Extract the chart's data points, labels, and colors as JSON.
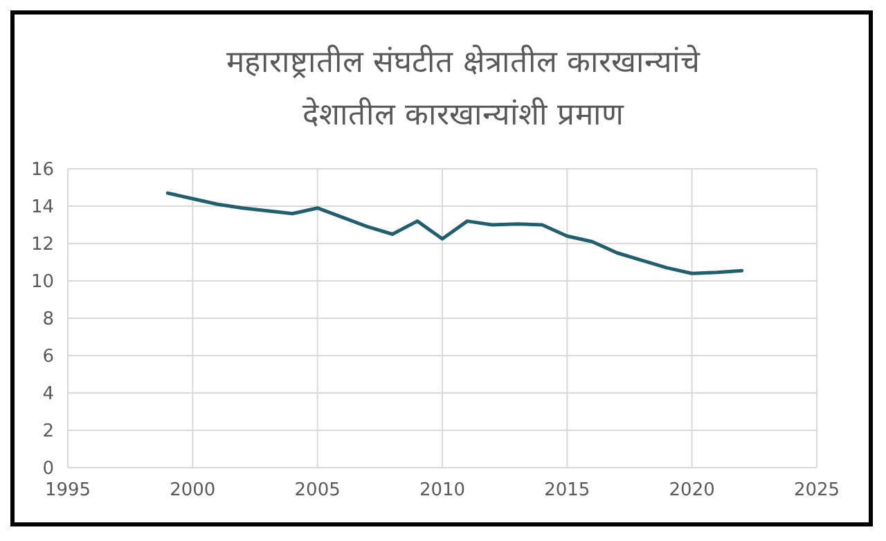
{
  "chart_data": {
    "type": "line",
    "title": "महाराष्ट्रातील संघटीत क्षेत्रातील कारखान्यांचे\nदेशातील कारखान्यांशी प्रमाण",
    "x": [
      1999,
      2000,
      2001,
      2002,
      2003,
      2004,
      2005,
      2006,
      2007,
      2008,
      2009,
      2010,
      2011,
      2012,
      2013,
      2014,
      2015,
      2016,
      2017,
      2018,
      2019,
      2020,
      2021,
      2022
    ],
    "series": [
      {
        "color": "#215f6e",
        "values": [
          14.7,
          14.4,
          14.1,
          13.9,
          13.75,
          13.6,
          13.9,
          13.4,
          12.9,
          12.5,
          13.2,
          12.25,
          13.2,
          13.0,
          13.05,
          13.0,
          12.4,
          12.1,
          11.5,
          11.1,
          10.7,
          10.4,
          10.45,
          10.55
        ]
      }
    ],
    "xlim": [
      1995,
      2025
    ],
    "xticks": [
      1995,
      2000,
      2005,
      2010,
      2015,
      2020,
      2025
    ],
    "ylim": [
      0,
      16
    ],
    "yticks": [
      0,
      2,
      4,
      6,
      8,
      10,
      12,
      14,
      16
    ],
    "grid": true,
    "marker": "none",
    "line_style": "solid"
  }
}
